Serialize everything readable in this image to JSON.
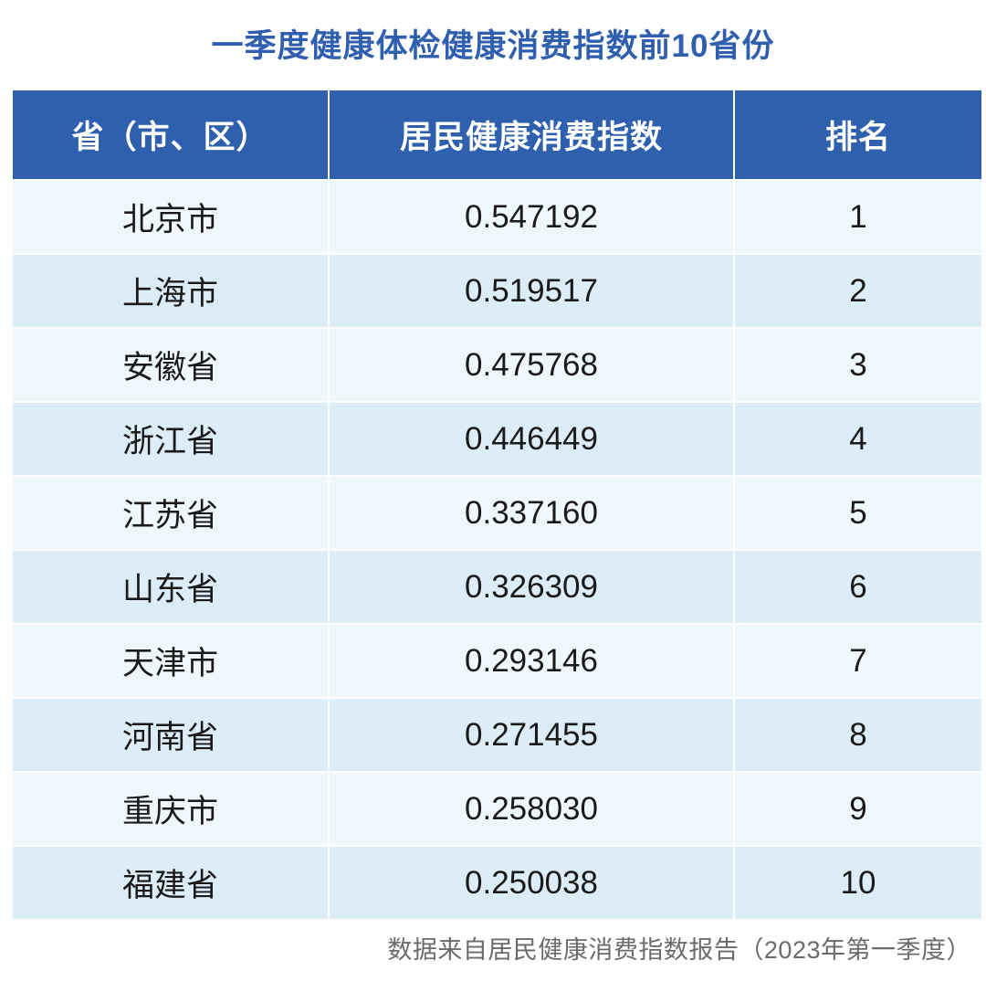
{
  "title": "一季度健康体检健康消费指数前10省份",
  "chart_data": {
    "type": "table",
    "columns": [
      "省（市、区）",
      "居民健康消费指数",
      "排名"
    ],
    "rows": [
      [
        "北京市",
        "0.547192",
        "1"
      ],
      [
        "上海市",
        "0.519517",
        "2"
      ],
      [
        "安徽省",
        "0.475768",
        "3"
      ],
      [
        "浙江省",
        "0.446449",
        "4"
      ],
      [
        "江苏省",
        "0.337160",
        "5"
      ],
      [
        "山东省",
        "0.326309",
        "6"
      ],
      [
        "天津市",
        "0.293146",
        "7"
      ],
      [
        "河南省",
        "0.271455",
        "8"
      ],
      [
        "重庆市",
        "0.258030",
        "9"
      ],
      [
        "福建省",
        "0.250038",
        "10"
      ]
    ]
  },
  "source": "数据来自居民健康消费指数报告（2023年第一季度）",
  "colors": {
    "header_bg": "#2e60ad",
    "title": "#2f5fae",
    "row_light": "#eef8fc",
    "row_dark": "#dcedf7"
  }
}
